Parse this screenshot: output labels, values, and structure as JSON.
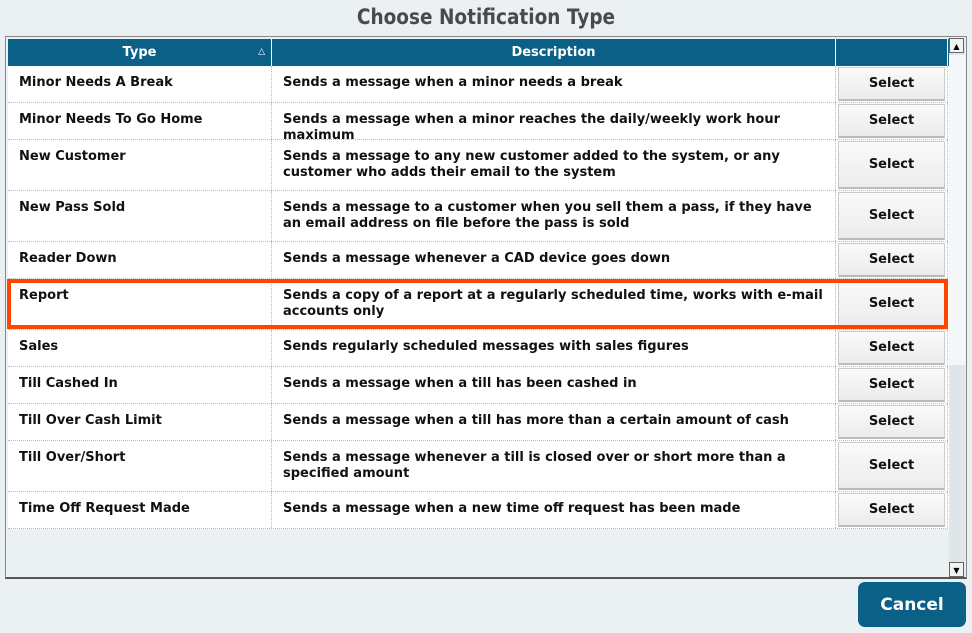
{
  "title": "Choose Notification Type",
  "columns": {
    "type": "Type",
    "description": "Description"
  },
  "rows": [
    {
      "type": "Minor Needs A Break",
      "description": "Sends a message when a minor needs a break",
      "action": "Select"
    },
    {
      "type": "Minor Needs To Go Home",
      "description": "Sends a message when a minor reaches the daily/weekly work hour maximum",
      "action": "Select"
    },
    {
      "type": "New Customer",
      "description": "Sends a message to any new customer added to the system, or any customer who adds their email to the system",
      "action": "Select"
    },
    {
      "type": "New Pass Sold",
      "description": "Sends a message to a customer when you sell them a pass, if they have an email address on file before the pass is sold",
      "action": "Select"
    },
    {
      "type": "Reader Down",
      "description": "Sends a message whenever a CAD device goes down",
      "action": "Select"
    },
    {
      "type": "Report",
      "description": "Sends a copy of a report at a regularly scheduled time, works with e-mail accounts only",
      "action": "Select"
    },
    {
      "type": "Sales",
      "description": "Sends regularly scheduled messages with sales figures",
      "action": "Select"
    },
    {
      "type": "Till Cashed In",
      "description": "Sends a message when a till has been cashed in",
      "action": "Select"
    },
    {
      "type": "Till Over Cash Limit",
      "description": "Sends a message when a till has more than a certain amount of cash",
      "action": "Select"
    },
    {
      "type": "Till Over/Short",
      "description": "Sends a message whenever a till is closed over or short more than a specified amount",
      "action": "Select"
    },
    {
      "type": "Time Off Request Made",
      "description": "Sends a message when a new time off request has been made",
      "action": "Select"
    }
  ],
  "highlighted_row": "Report",
  "highlight_color": "#ff4500",
  "accent": "#0b6088",
  "cancel_label": "Cancel"
}
